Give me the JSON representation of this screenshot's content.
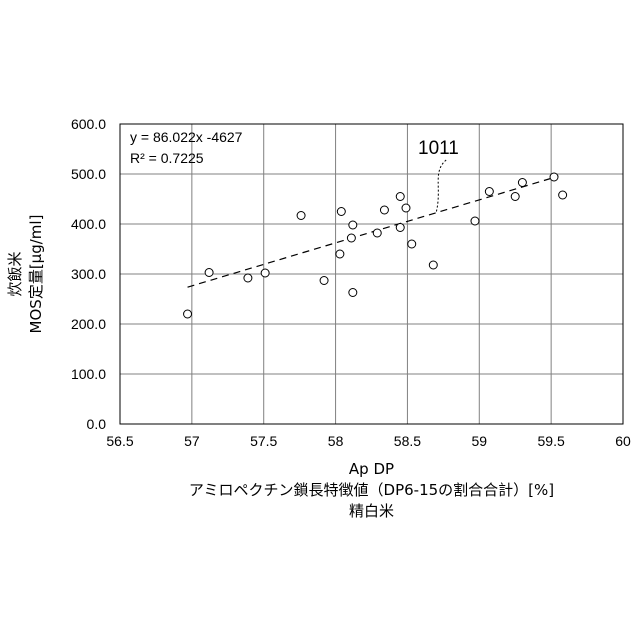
{
  "chart_data": {
    "type": "scatter",
    "x_axis": {
      "range": [
        56.5,
        60
      ],
      "ticks": [
        "56.5",
        "57",
        "57.5",
        "58",
        "58.5",
        "59",
        "59.5",
        "60"
      ],
      "label_lines": [
        "Ap DP",
        "アミロペクチン鎖長特徴値（DP6-15の割合合計）[%]",
        "精白米"
      ]
    },
    "y_axis": {
      "range": [
        0,
        600
      ],
      "ticks": [
        "0.0",
        "100.0",
        "200.0",
        "300.0",
        "400.0",
        "500.0",
        "600.0"
      ],
      "label_lines": [
        "炊飯米",
        "MOS定量[μg/ml]"
      ]
    },
    "grid": true,
    "series": [
      {
        "marker": "open-circle",
        "points": [
          {
            "x": 56.97,
            "y": 220
          },
          {
            "x": 57.12,
            "y": 303
          },
          {
            "x": 57.39,
            "y": 292
          },
          {
            "x": 57.51,
            "y": 302
          },
          {
            "x": 57.76,
            "y": 417
          },
          {
            "x": 57.92,
            "y": 287
          },
          {
            "x": 58.03,
            "y": 340
          },
          {
            "x": 58.04,
            "y": 425
          },
          {
            "x": 58.11,
            "y": 372
          },
          {
            "x": 58.12,
            "y": 398
          },
          {
            "x": 58.12,
            "y": 263
          },
          {
            "x": 58.29,
            "y": 382
          },
          {
            "x": 58.34,
            "y": 428
          },
          {
            "x": 58.45,
            "y": 393
          },
          {
            "x": 58.45,
            "y": 455
          },
          {
            "x": 58.49,
            "y": 432
          },
          {
            "x": 58.53,
            "y": 360
          },
          {
            "x": 58.68,
            "y": 318
          },
          {
            "x": 58.97,
            "y": 406
          },
          {
            "x": 59.07,
            "y": 465
          },
          {
            "x": 59.25,
            "y": 455
          },
          {
            "x": 59.3,
            "y": 483
          },
          {
            "x": 59.52,
            "y": 494
          },
          {
            "x": 59.58,
            "y": 458
          }
        ]
      }
    ],
    "trendline": {
      "style": "dashed",
      "slope": 86.022,
      "intercept": -4627,
      "x_range": [
        56.97,
        59.55
      ],
      "equation_text": "y = 86.022x -4627",
      "r2_text": "R² = 0.7225"
    },
    "annotation": {
      "text": "1011",
      "points_to": {
        "x": 58.7,
        "y": 423
      }
    }
  }
}
